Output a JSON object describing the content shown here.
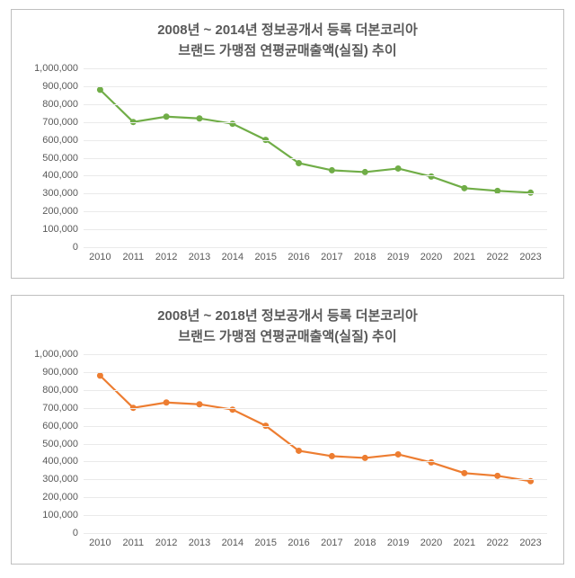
{
  "charts": [
    {
      "title_line1": "2008년 ~ 2014년 정보공개서 등록 더본코리아",
      "title_line2": "브랜드 가맹점 연평균매출액(실질) 추이",
      "title_fontsize": 15,
      "title_color": "#595959",
      "type": "line",
      "background_color": "#ffffff",
      "border_color": "#bfbfbf",
      "grid_color": "#eaeaea",
      "axis_label_color": "#595959",
      "axis_label_fontsize": 11,
      "line_color": "#70ad47",
      "marker_color": "#70ad47",
      "line_width": 2.2,
      "marker_radius": 3.5,
      "ylim": [
        0,
        1000000
      ],
      "ytick_step": 100000,
      "yticks": [
        "0",
        "100,000",
        "200,000",
        "300,000",
        "400,000",
        "500,000",
        "600,000",
        "700,000",
        "800,000",
        "900,000",
        "1,000,000"
      ],
      "categories": [
        "2010",
        "2011",
        "2012",
        "2013",
        "2014",
        "2015",
        "2016",
        "2017",
        "2018",
        "2019",
        "2020",
        "2021",
        "2022",
        "2023"
      ],
      "values": [
        880000,
        700000,
        730000,
        720000,
        690000,
        600000,
        470000,
        430000,
        420000,
        440000,
        395000,
        330000,
        315000,
        305000
      ]
    },
    {
      "title_line1": "2008년 ~ 2018년 정보공개서 등록 더본코리아",
      "title_line2": "브랜드 가맹점 연평균매출액(실질) 추이",
      "title_fontsize": 15,
      "title_color": "#595959",
      "type": "line",
      "background_color": "#ffffff",
      "border_color": "#bfbfbf",
      "grid_color": "#eaeaea",
      "axis_label_color": "#595959",
      "axis_label_fontsize": 11,
      "line_color": "#ed7d31",
      "marker_color": "#ed7d31",
      "line_width": 2.2,
      "marker_radius": 3.5,
      "ylim": [
        0,
        1000000
      ],
      "ytick_step": 100000,
      "yticks": [
        "0",
        "100,000",
        "200,000",
        "300,000",
        "400,000",
        "500,000",
        "600,000",
        "700,000",
        "800,000",
        "900,000",
        "1,000,000"
      ],
      "categories": [
        "2010",
        "2011",
        "2012",
        "2013",
        "2014",
        "2015",
        "2016",
        "2017",
        "2018",
        "2019",
        "2020",
        "2021",
        "2022",
        "2023"
      ],
      "values": [
        880000,
        700000,
        730000,
        720000,
        690000,
        600000,
        460000,
        430000,
        420000,
        440000,
        395000,
        335000,
        320000,
        290000
      ]
    }
  ]
}
